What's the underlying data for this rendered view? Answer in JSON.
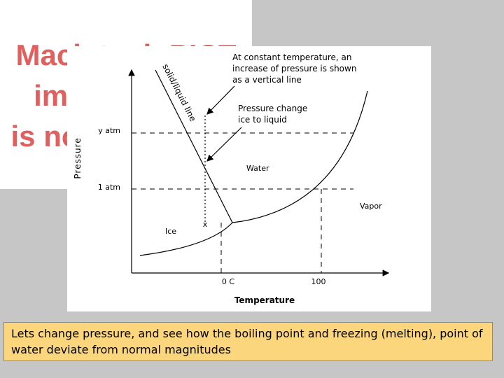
{
  "placeholder": {
    "lines": [
      "Macintosh PICT",
      "image format",
      "is not supported"
    ]
  },
  "diagram": {
    "note": "At constant temperature, an increase of pressure is shown as a vertical line",
    "curve_label": "solid/liquid line",
    "change_label": "Pressure change ice to liquid",
    "y_axis_label": "Pressure",
    "x_axis_label": "Temperature",
    "pressure_high": "y atm",
    "pressure_normal": "1 atm",
    "region_water": "Water",
    "region_vapor": "Vapor",
    "region_ice": "Ice",
    "temp_freezing": "0 C",
    "temp_boiling": "100",
    "point_marker": "x"
  },
  "caption": "Lets change pressure, and see how the boiling point and freezing (melting), point of water deviate from normal magnitudes"
}
